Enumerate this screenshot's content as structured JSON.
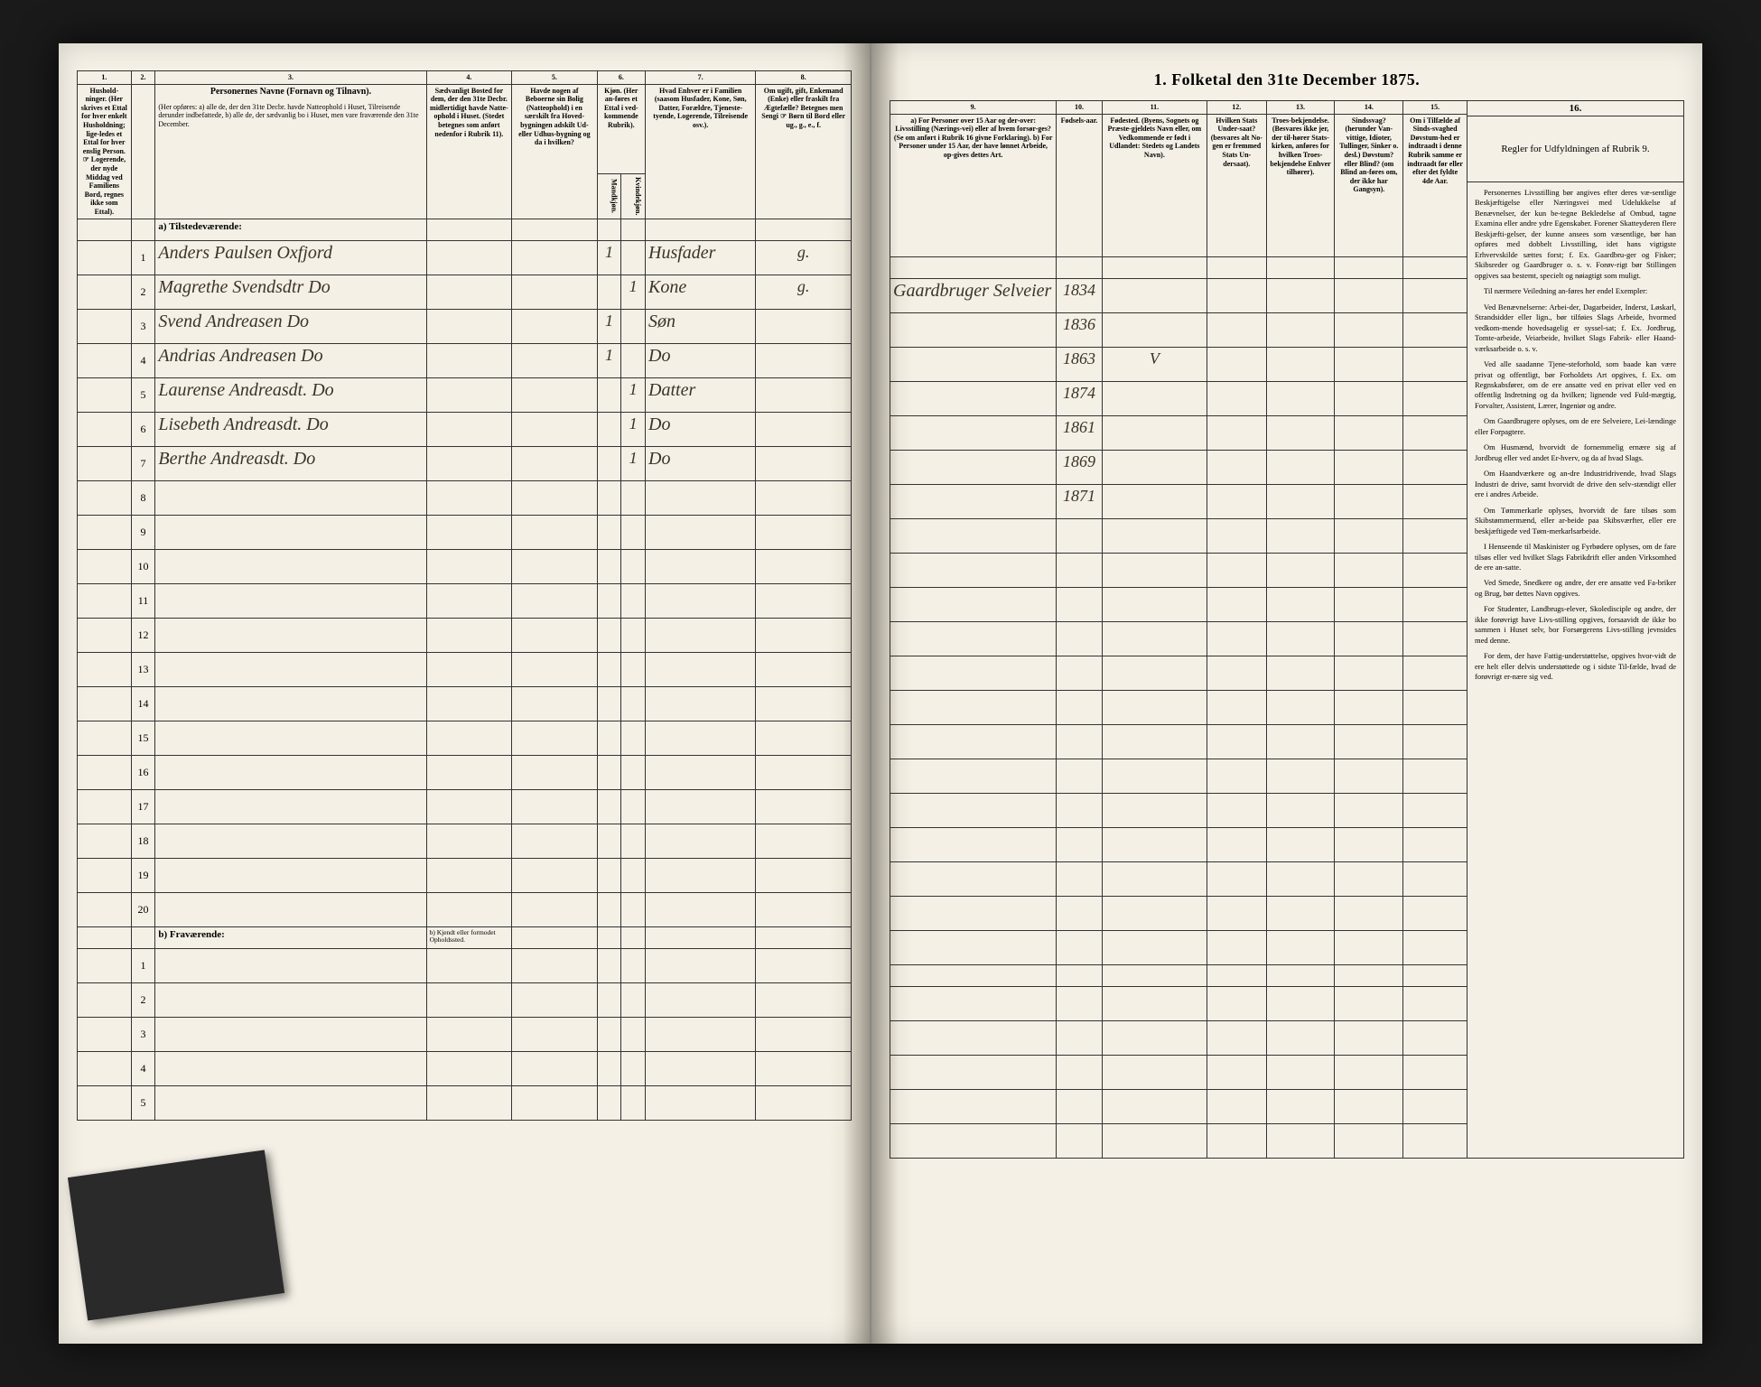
{
  "title": "1.  Folketal den 31te December 1875.",
  "columns_left": {
    "c1": "1.",
    "c2": "2.",
    "c3": "3.",
    "c4": "4.",
    "c5": "5.",
    "c6": "6.",
    "c7": "7.",
    "c8": "8."
  },
  "columns_right": {
    "c9": "9.",
    "c10": "10.",
    "c11": "11.",
    "c12": "12.",
    "c13": "13.",
    "c14": "14.",
    "c15": "15.",
    "c16": "16."
  },
  "headers_left": {
    "h1": "Hushold-\nninger.\n(Her skrives et Ettal for hver enkelt Husholdning; lige-ledes et Ettal for hver enslig Person.\n☞ Logerende, der nyde Middag ved Familiens Bord, regnes ikke som Ettal).",
    "h2": "",
    "h3_title": "Personernes Navne (Fornavn og Tilnavn).",
    "h3_body": "(Her opføres:\na) alle de, der den 31te Decbr. havde Natteophold i Huset, Tilreisende derunder indbefattede,\nb) alle de, der sædvanlig bo i Huset, men vare fraværende den 31te December.",
    "h4": "Sædvanligt Bosted for dem, der den 31te Decbr. midlertidigt havde Natte-ophold i Huset.\n(Stedet betegnes som anført nedenfor i Rubrik 11).",
    "h5": "Havde nogen af Beboerne sin Bolig (Natteophold) i en særskilt fra Hoved-bygningen adskilt Ud-eller Udhus-bygning og da i hvilken?",
    "h6": "Kjøn.\n(Her an-føres et Ettal i ved-kommende Rubrik).",
    "h6a": "Mandkjøn.",
    "h6b": "Kvindekjøn.",
    "h7": "Hvad Enhver er i Familien\n(saasom Husfader, Kone, Søn, Datter, Forældre, Tjeneste-tyende, Logerende, Tilreisende osv.).",
    "h8": "Om ugift, gift, Enkemand (Enke) eller fraskilt fra Ægtefælle?\nBetegnes men Sengi\n☞ Børn til Bord eller  ug., g., e., f."
  },
  "headers_right": {
    "h9": "a) For Personer over 15 Aar og der-over: Livsstilling (Nærings-vei) eller af hvem forsør-ges? (Se om anført i Rubrik 16 givne Forklaring).\nb) For Personer under 15 Aar, der have lønnet Arbeide, op-gives dettes Art.",
    "h10": "Fødsels-aar.",
    "h11": "Fødested.\n(Byens, Sognets og Præste-gjeldets Navn eller, om Vedkommende er født i Udlandet: Stedets og Landets Navn).",
    "h12": "Hvilken Stats Under-saat?\n(besvares alt No-gen er fremmed Stats Un-dersaat).",
    "h13": "Troes-bekjendelse.\n(Besvares ikke jer, der til-hører Stats-kirken, anføres for hvilken Troes-bekjendelse Enhver tilhører).",
    "h14": "Sindssvag?\n(herunder Van-vittige, Idioter, Tullinger, Sinker o. desl.)\nDøvstum?\neller Blind?\n(om Blind an-føres om, der ikke har Gangsyn).",
    "h15": "Om i Tilfælde af Sinds-svaghed Døvstum-hed er indtraadt i denne Rubrik samme er indtraadt før eller efter det fyldte 4de Aar.",
    "h16_title": "Regler for Udfyldningen\naf\nRubrik 9."
  },
  "section_a": "a) Tilstedeværende:",
  "section_b": "b) Fraværende:",
  "section_b_sub": "b) Kjendt eller formodet Opholdssted.",
  "rows": [
    {
      "n": "1",
      "name": "Anders Paulsen Oxfjord",
      "c5": "",
      "c6a": "1",
      "c6b": "",
      "c7": "Husfader",
      "c8": "g.",
      "c9": "Gaardbruger Selveier",
      "c10": "1834",
      "c11": ""
    },
    {
      "n": "2",
      "name": "Magrethe Svendsdtr Do",
      "c5": "",
      "c6a": "",
      "c6b": "1",
      "c7": "Kone",
      "c8": "g.",
      "c9": "",
      "c10": "1836",
      "c11": ""
    },
    {
      "n": "3",
      "name": "Svend Andreasen Do",
      "c5": "",
      "c6a": "1",
      "c6b": "",
      "c7": "Søn",
      "c8": "",
      "c9": "",
      "c10": "1863",
      "c11": "V"
    },
    {
      "n": "4",
      "name": "Andrias Andreasen Do",
      "c5": "",
      "c6a": "1",
      "c6b": "",
      "c7": "Do",
      "c8": "",
      "c9": "",
      "c10": "1874",
      "c11": ""
    },
    {
      "n": "5",
      "name": "Laurense Andreasdt. Do",
      "c5": "",
      "c6a": "",
      "c6b": "1",
      "c7": "Datter",
      "c8": "",
      "c9": "",
      "c10": "1861",
      "c11": ""
    },
    {
      "n": "6",
      "name": "Lisebeth Andreasdt. Do",
      "c5": "",
      "c6a": "",
      "c6b": "1",
      "c7": "Do",
      "c8": "",
      "c9": "",
      "c10": "1869",
      "c11": ""
    },
    {
      "n": "7",
      "name": "Berthe Andreasdt. Do",
      "c5": "",
      "c6a": "",
      "c6b": "1",
      "c7": "Do",
      "c8": "",
      "c9": "",
      "c10": "1871",
      "c11": ""
    }
  ],
  "empty_rows_a": [
    "8",
    "9",
    "10",
    "11",
    "12",
    "13",
    "14",
    "15",
    "16",
    "17",
    "18",
    "19",
    "20"
  ],
  "empty_rows_b": [
    "1",
    "2",
    "3",
    "4",
    "5"
  ],
  "instructions": {
    "p1": "Personernes Livsstilling bør angives efter deres væ-sentlige Beskjæftigelse eller Næringsvei med Udelukkelse af Benævnelser, der kun be-tegne Bekledelse af Ombud, tagne Examina eller andre ydre Egenskaber. Forener Skatteyderen flere Beskjæfti-gelser, der kunne ansees som væsentlige, bør han opføres med dobbelt Livsstilling, idet hans vigtigste Erhvervskilde sættes forst; f. Ex. Gaardbru-ger og Fisker; Skibsreder og Gaardbruger o. s. v. Forøv-rigt bør Stillingen opgives saa bestemt, specielt og nøiagtigt som muligt.",
    "p2": "Til nærmere Veiledning an-føres her endel Exempler:",
    "p3": "Ved Benævnelserne: Arbei-der, Dagarbeider, Inderst, Løskarl, Strandsidder eller lign., bør tilføies Slags Arbeide, hvormed vedkom-mende hovedsagelig er syssel-sat; f. Ex. Jordbrug, Tomte-arbeide, Veiarbeide, hvilket Slags Fabrik- eller Haand-værksarbeide o. s. v.",
    "p4": "Ved alle saadanne Tjene-steforhold, som baade kan være privat og offentligt, bør Forholdets Art opgives, f. Ex. om Regnskabsfører, om de ere ansatte ved en privat eller ved en offentlig Indretning og da hvilken; lignende ved Fuld-mægtig, Forvalter, Assistent, Lærer, Ingeniør og andre.",
    "p5": "Om Gaardbrugere oplyses, om de ere Selveiere, Lei-lændinge eller Forpagtere.",
    "p6": "Om Husmænd, hvorvidt de fornemmelig ernære sig af Jordbrug eller ved andet Er-hverv, og da af hvad Slags.",
    "p7": "Om Haandværkere og an-dre Industridrivende, hvad Slags Industri de drive, samt hvorvidt de drive den selv-stændigt eller ere i andres Arbeide.",
    "p8": "Om Tømmerkarle oplyses, hvorvidt de fare tilsøs som Skibstømmermænd, eller ar-beide paa Skibsværfter, eller ere beskjæftigede ved Tøm-merkarlsarbeide.",
    "p9": "I Henseende til Maskinister og Fyrbødere oplyses, om de fare tilsøs eller ved hvilket Slags Fabrikdrift eller anden Virksomhed de ere an-satte.",
    "p10": "Ved Smede, Snedkere og andre, der ere ansatte ved Fa-briker og Brug, bør dettes Navn opgives.",
    "p11": "For Studenter, Landbrugs-elever, Skoledisciple og andre, der ikke forøvrigt have Livs-stilling opgives, forsaavidt de ikke bo sammen i Huset selv, bor Forsørgerens Livs-stilling jevnsides med denne.",
    "p12": "For dem, der have Fattig-understøttelse, opgives hvor-vidt de ere helt eller delvis understøttede og i sidste Til-fælde, hvad de forøvrigt er-nære sig ved."
  },
  "colors": {
    "paper": "#f4f0e6",
    "ink": "#333333",
    "handwriting": "#3a3328",
    "background": "#1a1a1a"
  },
  "column_widths_left": {
    "c1": 50,
    "c2": 22,
    "c3": 270,
    "c4": 85,
    "c5": 85,
    "c6a": 24,
    "c6b": 24,
    "c7": 110,
    "c8": 95
  },
  "column_widths_right": {
    "c9": 145,
    "c10": 50,
    "c11": 115,
    "c12": 65,
    "c13": 75,
    "c14": 75,
    "c15": 70
  }
}
